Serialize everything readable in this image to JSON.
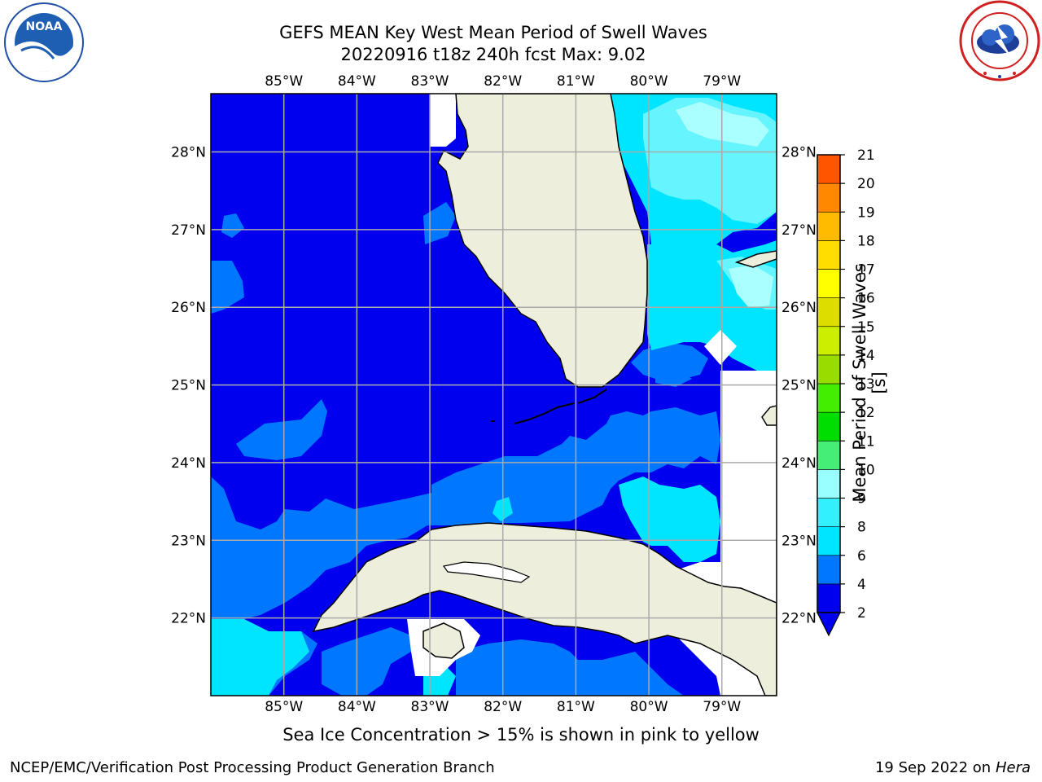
{
  "header": {
    "title_line1": "GEFS MEAN Key West Mean Period of Swell Waves",
    "title_line2": "20220916 t18z 240h fcst   Max: 9.02"
  },
  "logos": {
    "left_name": "NOAA",
    "left_ring_text": "NATIONAL OCEANIC AND ATMOSPHERIC ADMINISTRATION · U.S. DEPARTMENT OF COMMERCE",
    "right_ring_text": "NATIONAL WEATHER SERVICE"
  },
  "map": {
    "lon_labels": [
      "85°W",
      "84°W",
      "83°W",
      "82°W",
      "81°W",
      "80°W",
      "79°W"
    ],
    "lat_labels": [
      "28°N",
      "27°N",
      "26°N",
      "25°N",
      "24°N",
      "23°N",
      "22°N"
    ],
    "extent": {
      "lon_min": -86.0,
      "lon_max": -78.25,
      "lat_min": 21.0,
      "lat_max": 28.75
    }
  },
  "colorbar": {
    "label": "Mean Period of Swell Waves [s]",
    "ticks": [
      "2",
      "4",
      "6",
      "8",
      "9",
      "10",
      "11",
      "12",
      "13",
      "14",
      "15",
      "16",
      "17",
      "18",
      "19",
      "20",
      "21"
    ],
    "colors": [
      "#0000ee",
      "#0077ff",
      "#00e5ff",
      "#33f0ff",
      "#99ffff",
      "#44ee77",
      "#00dd00",
      "#44ee00",
      "#99dd00",
      "#ccee00",
      "#dddd00",
      "#ffff00",
      "#ffdd00",
      "#ffbb00",
      "#ff8800",
      "#ff5500",
      "#ff2200",
      "#ff0000"
    ],
    "extend_color": "#0000ee"
  },
  "note": "Sea Ice Concentration > 15% is shown in pink to yellow",
  "footer": {
    "left": "NCEP/EMC/Verification Post Processing Product Generation Branch",
    "date": "19 Sep 2022 on",
    "machine": "Hera"
  }
}
